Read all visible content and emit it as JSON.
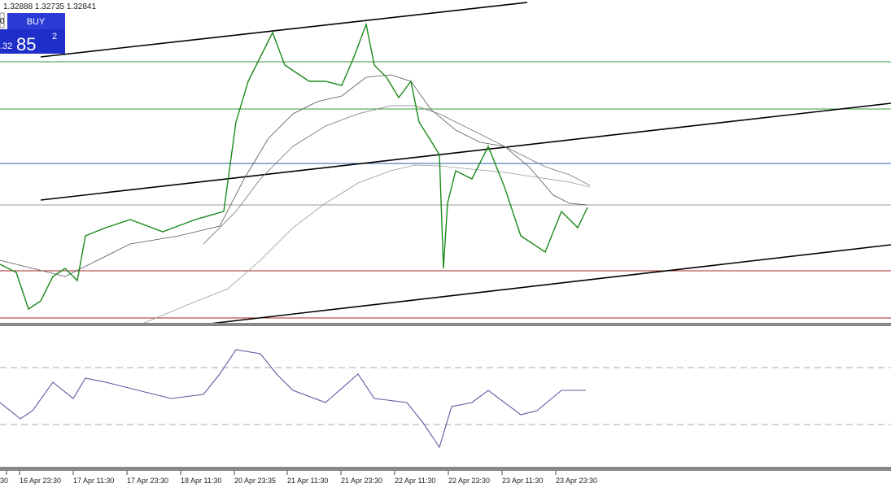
{
  "header": {
    "symbol_cut": "0",
    "ohlc": "1.32888 1.32735 1.32841"
  },
  "buy_panel": {
    "button": "BUY",
    "price_prefix": ".32",
    "price_big": "85",
    "price_small": "2"
  },
  "x_axis": {
    "labels": [
      "30",
      "16 Apr 23:30",
      "17 Apr 11:30",
      "17 Apr 23:30",
      "18 Apr 11:30",
      "20 Apr 23:35",
      "21 Apr 11:30",
      "21 Apr 23:30",
      "22 Apr 11:30",
      "22 Apr 23:30",
      "23 Apr 11:30",
      "23 Apr 23:30"
    ]
  }
}
